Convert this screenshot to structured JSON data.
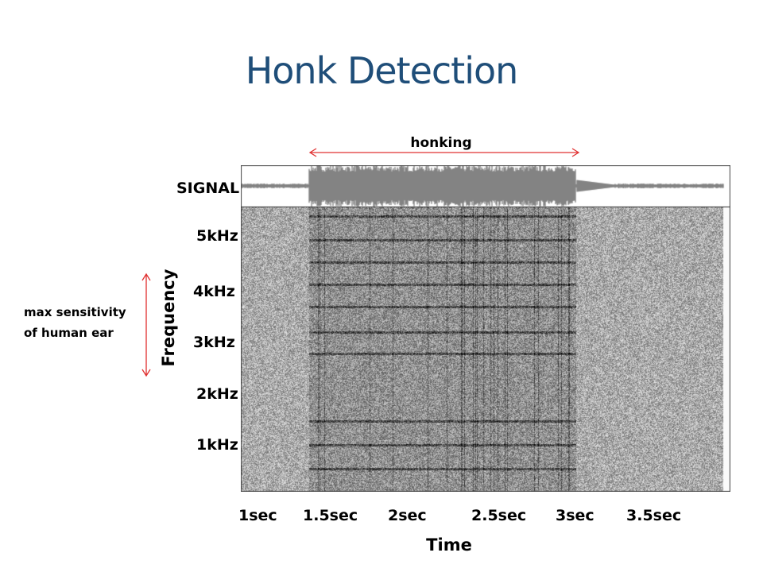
{
  "title": "Honk Detection",
  "honk_label": "honking",
  "signal_label": "SIGNAL",
  "y_axis_label": "Frequency",
  "x_axis_label": "Time",
  "annotation": [
    "max sensitivity",
    "of human ear"
  ],
  "freq_ticks": [
    "5kHz",
    "4kHz",
    "3kHz",
    "2kHz",
    "1kHz"
  ],
  "time_ticks": [
    "1sec",
    "1.5sec",
    "2sec",
    "2.5sec",
    "3sec",
    "3.5sec"
  ],
  "colors": {
    "title": "#1f4e79",
    "arrow": "#e03030",
    "waveform": "#5a5a5a"
  }
}
